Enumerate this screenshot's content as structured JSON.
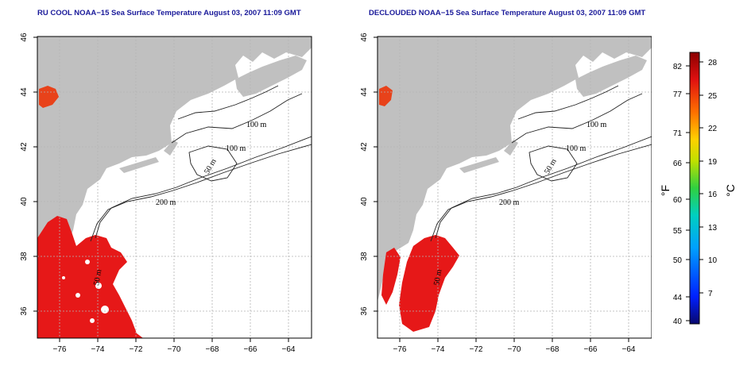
{
  "panels": [
    {
      "title": "RU COOL NOAA−15 Sea Surface Temperature August 03, 2007 11:09 GMT",
      "x_ticks": [
        "−76",
        "−74",
        "−72",
        "−70",
        "−68",
        "−66",
        "−64"
      ],
      "y_ticks": [
        "36",
        "38",
        "40",
        "42",
        "44",
        "46"
      ],
      "contour_labels": [
        "100 m",
        "100 m",
        "50 m",
        "200 m",
        "50 m"
      ]
    },
    {
      "title": "DECLOUDED NOAA−15 Sea Surface Temperature August 03, 2007 11:09 GMT",
      "x_ticks": [
        "−76",
        "−74",
        "−72",
        "−70",
        "−68",
        "−66",
        "−64"
      ],
      "y_ticks": [
        "36",
        "38",
        "40",
        "42",
        "44",
        "46"
      ],
      "contour_labels": [
        "100 m",
        "100 m",
        "50 m",
        "200 m",
        "50 m"
      ]
    }
  ],
  "colorbar": {
    "fahrenheit_label": "°F",
    "celsius_label": "°C",
    "fahrenheit_ticks": [
      "82",
      "77",
      "71",
      "66",
      "60",
      "55",
      "50",
      "44",
      "40"
    ],
    "celsius_ticks": [
      "28",
      "25",
      "22",
      "19",
      "16",
      "13",
      "10",
      "7"
    ],
    "range_c": [
      4.4,
      28.9
    ],
    "colors": [
      "#08086e",
      "#0020ff",
      "#00a0ff",
      "#00d0c0",
      "#30d040",
      "#c0e000",
      "#ffd000",
      "#ff7000",
      "#e01010",
      "#8b0000"
    ]
  },
  "map_colors": {
    "land": "#c0c0c0",
    "ocean": "#ffffff",
    "warm_sst": "#e61818",
    "grid": "#b4b4b4"
  }
}
